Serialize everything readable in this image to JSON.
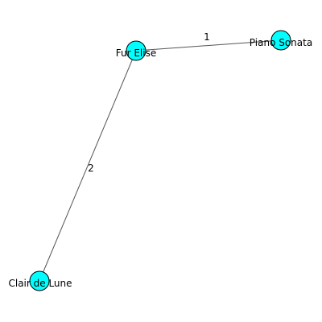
{
  "graph": {
    "nodes": [
      {
        "id": "fur-elise",
        "label": "Fur Elise"
      },
      {
        "id": "piano-sonata",
        "label": "Piano Sonata"
      },
      {
        "id": "clair-de-lune",
        "label": "Clair de Lune"
      }
    ],
    "edges": [
      {
        "from": "fur-elise",
        "to": "piano-sonata",
        "weight": "1"
      },
      {
        "from": "fur-elise",
        "to": "clair-de-lune",
        "weight": "2"
      }
    ],
    "colors": {
      "node_fill": "#00ffff",
      "node_stroke": "#000000",
      "edge_stroke": "#555555"
    }
  }
}
